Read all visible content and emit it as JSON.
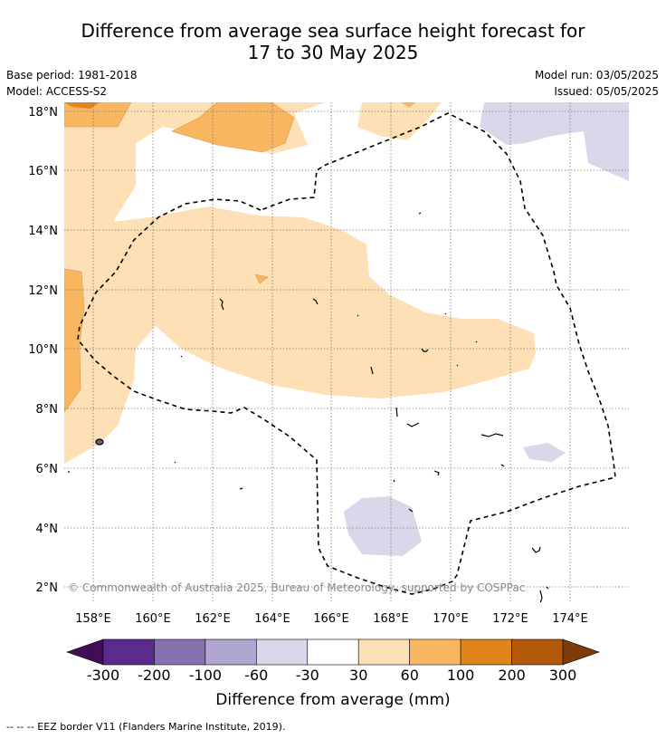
{
  "title": {
    "line1": "Difference from average sea surface height forecast for",
    "line2": "17 to 30 May 2025"
  },
  "meta": {
    "base_period": "Base period: 1981-2018",
    "model": "Model: ACCESS-S2",
    "model_run": "Model run: 03/05/2025",
    "issued": "Issued: 05/05/2025"
  },
  "map": {
    "lat_ticks": [
      "18°N",
      "16°N",
      "14°N",
      "12°N",
      "10°N",
      "8°N",
      "6°N",
      "4°N",
      "2°N"
    ],
    "lon_ticks": [
      "158°E",
      "160°E",
      "162°E",
      "164°E",
      "166°E",
      "168°E",
      "170°E",
      "172°E",
      "174°E"
    ],
    "copyright": "© Commonwealth of Australia 2025, Bureau of Meteorology, supported by COSPPac"
  },
  "colorbar": {
    "ticks": [
      "-300",
      "-200",
      "-100",
      "-60",
      "-30",
      "30",
      "60",
      "100",
      "200",
      "300"
    ],
    "colors": [
      "#3f0e56",
      "#5a2a8c",
      "#8570b0",
      "#b0a7d1",
      "#d8d8ea",
      "#ffffff",
      "#fde0b5",
      "#f9b660",
      "#e0841b",
      "#b35808",
      "#7f3c0a"
    ],
    "label": "Difference from average (mm)"
  },
  "legend": {
    "eez": "--  --  -- EEZ border V11 (Flanders Marine Institute, 2019)."
  }
}
